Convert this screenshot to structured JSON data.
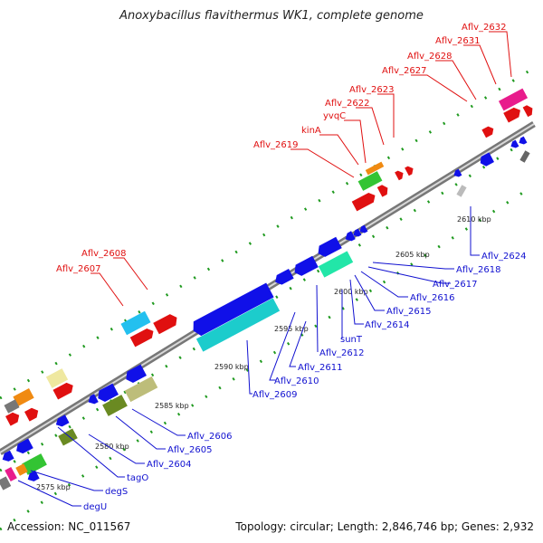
{
  "title": "Anoxybacillus flavithermus WK1, complete genome",
  "footer": {
    "accession": "Accession: NC_011567",
    "summary": "Topology: circular; Length: 2,846,746 bp; Genes: 2,932"
  },
  "colors": {
    "top_label": "#e01010",
    "bottom_label": "#1010d0",
    "backbone": "#888888",
    "dots": "#1f9a1f"
  },
  "ticks": [
    "2575 kbp",
    "2580 kbp",
    "2585 kbp",
    "2590 kbp",
    "2595 kbp",
    "2600 kbp",
    "2605 kbp",
    "2610 kbp"
  ],
  "top_labels": [
    "Aflv_2632",
    "Aflv_2631",
    "Aflv_2628",
    "Aflv_2627",
    "Aflv_2623",
    "Aflv_2622",
    "yvqC",
    "kinA",
    "Aflv_2619",
    "Aflv_2608",
    "Aflv_2607"
  ],
  "bottom_labels": [
    "Aflv_2624",
    "Aflv_2618",
    "Aflv_2617",
    "Aflv_2616",
    "Aflv_2615",
    "Aflv_2614",
    "sunT",
    "Aflv_2612",
    "Aflv_2611",
    "Aflv_2610",
    "Aflv_2609",
    "Aflv_2606",
    "Aflv_2605",
    "Aflv_2604",
    "tagO",
    "degS",
    "degU"
  ]
}
